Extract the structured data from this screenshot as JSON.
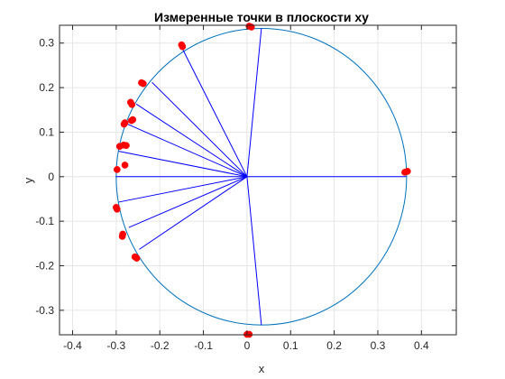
{
  "chart_data": {
    "type": "scatter",
    "title": "Измеренные точки в плоскости xy",
    "xlabel": "x",
    "ylabel": "y",
    "xlim": [
      -0.43,
      0.48
    ],
    "ylim": [
      -0.355,
      0.34
    ],
    "x_ticks": [
      -0.4,
      -0.3,
      -0.2,
      -0.1,
      0,
      0.1,
      0.2,
      0.3,
      0.4
    ],
    "x_tick_labels": [
      "-0.4",
      "-0.3",
      "-0.2",
      "-0.1",
      "0",
      "0.1",
      "0.2",
      "0.3",
      "0.4"
    ],
    "y_ticks": [
      -0.3,
      -0.2,
      -0.1,
      0,
      0.1,
      0.2,
      0.3
    ],
    "y_tick_labels": [
      "-0.3",
      "-0.2",
      "-0.1",
      "0",
      "0.1",
      "0.2",
      "0.3"
    ],
    "grid": true,
    "circle": {
      "center": [
        0.033,
        0
      ],
      "radius": 0.333,
      "color": "#0072BD"
    },
    "center_point": [
      0,
      0
    ],
    "spokes_color": "#0000FF",
    "spoke_endpoints": [
      [
        0.365,
        0
      ],
      [
        0.033,
        0.333
      ],
      [
        0.033,
        -0.333
      ],
      [
        -0.147,
        0.285
      ],
      [
        -0.218,
        0.212
      ],
      [
        -0.254,
        0.163
      ],
      [
        -0.274,
        0.118
      ],
      [
        -0.294,
        0.057
      ],
      [
        -0.301,
        0
      ],
      [
        -0.294,
        -0.057
      ],
      [
        -0.271,
        -0.114
      ],
      [
        -0.247,
        -0.163
      ]
    ],
    "points_color": "#FF0000",
    "points": [
      [
        0.005,
        0.338
      ],
      [
        0.01,
        0.336
      ],
      [
        -0.15,
        0.296
      ],
      [
        -0.148,
        0.292
      ],
      [
        -0.242,
        0.211
      ],
      [
        -0.238,
        0.209
      ],
      [
        -0.267,
        0.167
      ],
      [
        -0.264,
        0.162
      ],
      [
        -0.262,
        0.128
      ],
      [
        -0.265,
        0.126
      ],
      [
        -0.282,
        0.118
      ],
      [
        -0.28,
        0.121
      ],
      [
        -0.283,
        0.071
      ],
      [
        -0.277,
        0.07
      ],
      [
        -0.292,
        0.068
      ],
      [
        -0.28,
        0.026
      ],
      [
        -0.298,
        0.016
      ],
      [
        -0.3,
        -0.069
      ],
      [
        -0.298,
        -0.073
      ],
      [
        -0.285,
        -0.129
      ],
      [
        -0.286,
        -0.134
      ],
      [
        -0.257,
        -0.18
      ],
      [
        -0.253,
        -0.183
      ],
      [
        0.0,
        -0.354
      ],
      [
        0.005,
        -0.354
      ],
      [
        0.362,
        0.01
      ],
      [
        0.368,
        0.012
      ]
    ]
  }
}
